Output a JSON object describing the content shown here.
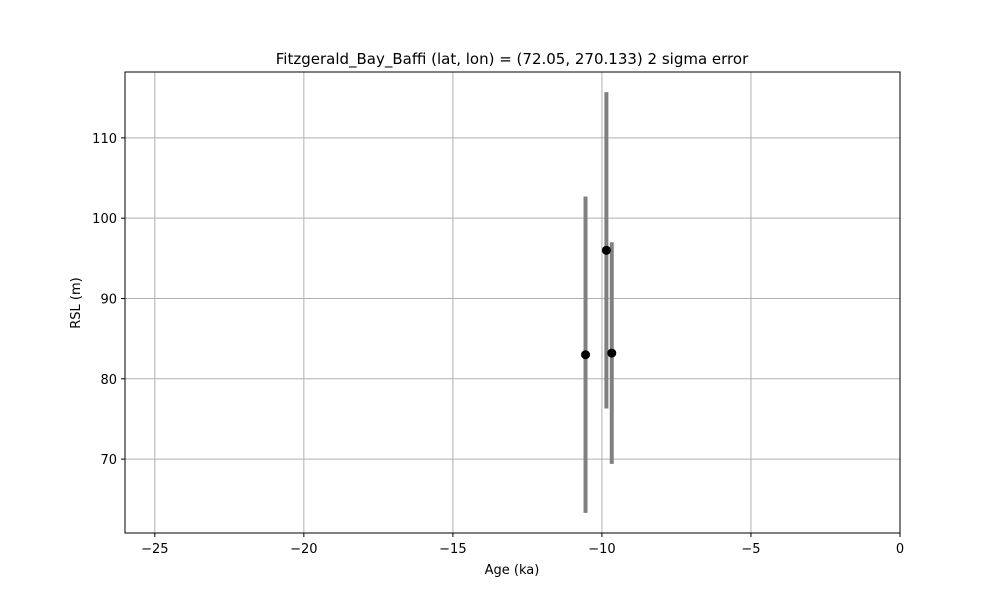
{
  "chart_data": {
    "type": "scatter",
    "title": "Fitzgerald_Bay_Baffi (lat, lon) = (72.05, 270.133)  2 sigma error",
    "xlabel": "Age (ka)",
    "ylabel": "RSL (m)",
    "xlim": [
      -26,
      0
    ],
    "ylim": [
      60.8,
      118.2
    ],
    "grid": true,
    "xticks": [
      -25,
      -20,
      -15,
      -10,
      -5,
      0
    ],
    "xtick_labels": [
      "−25",
      "−20",
      "−15",
      "−10",
      "−5",
      "0"
    ],
    "yticks": [
      70,
      80,
      90,
      100,
      110
    ],
    "ytick_labels": [
      "70",
      "80",
      "90",
      "100",
      "110"
    ],
    "points": [
      {
        "x": -10.55,
        "y": 83.0,
        "y_low": 63.3,
        "y_high": 102.7
      },
      {
        "x": -9.85,
        "y": 96.0,
        "y_low": 76.3,
        "y_high": 115.7
      },
      {
        "x": -9.67,
        "y": 83.2,
        "y_low": 69.4,
        "y_high": 97.0
      }
    ],
    "marker_color": "#000000",
    "errorbar_color": "#808080"
  }
}
